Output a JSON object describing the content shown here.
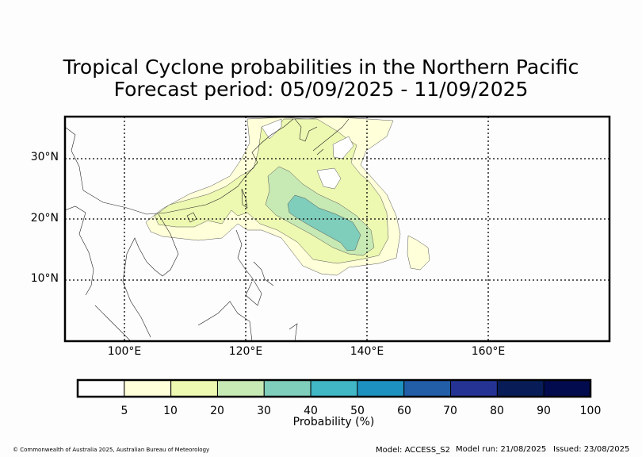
{
  "title_line1": "Tropical Cyclone probabilities in the Northern Pacific",
  "title_line2": "Forecast period: 05/09/2025 - 11/09/2025",
  "map": {
    "lat_labels": [
      "30°N",
      "20°N",
      "10°N"
    ],
    "lon_labels": [
      "100°E",
      "120°E",
      "140°E",
      "160°E"
    ],
    "extent": {
      "lon": [
        90,
        180
      ],
      "lat": [
        0,
        37
      ]
    }
  },
  "colorbar": {
    "title": "Probability (%)",
    "ticks": [
      "5",
      "10",
      "20",
      "30",
      "40",
      "50",
      "60",
      "70",
      "80",
      "90",
      "100"
    ],
    "colors": [
      "#ffffff",
      "#ffffd9",
      "#edf8b1",
      "#c7e9b4",
      "#7fcdbb",
      "#41b6c4",
      "#1d91c0",
      "#225ea8",
      "#253494",
      "#081d58",
      "#030b4f"
    ]
  },
  "footer": {
    "copyright": "© Commonwealth of Australia 2025, Australian Bureau of Meteorology",
    "model": "Model: ACCESS_S2",
    "model_run": "Model run: 21/08/2025",
    "issued": "Issued: 23/08/2025"
  }
}
